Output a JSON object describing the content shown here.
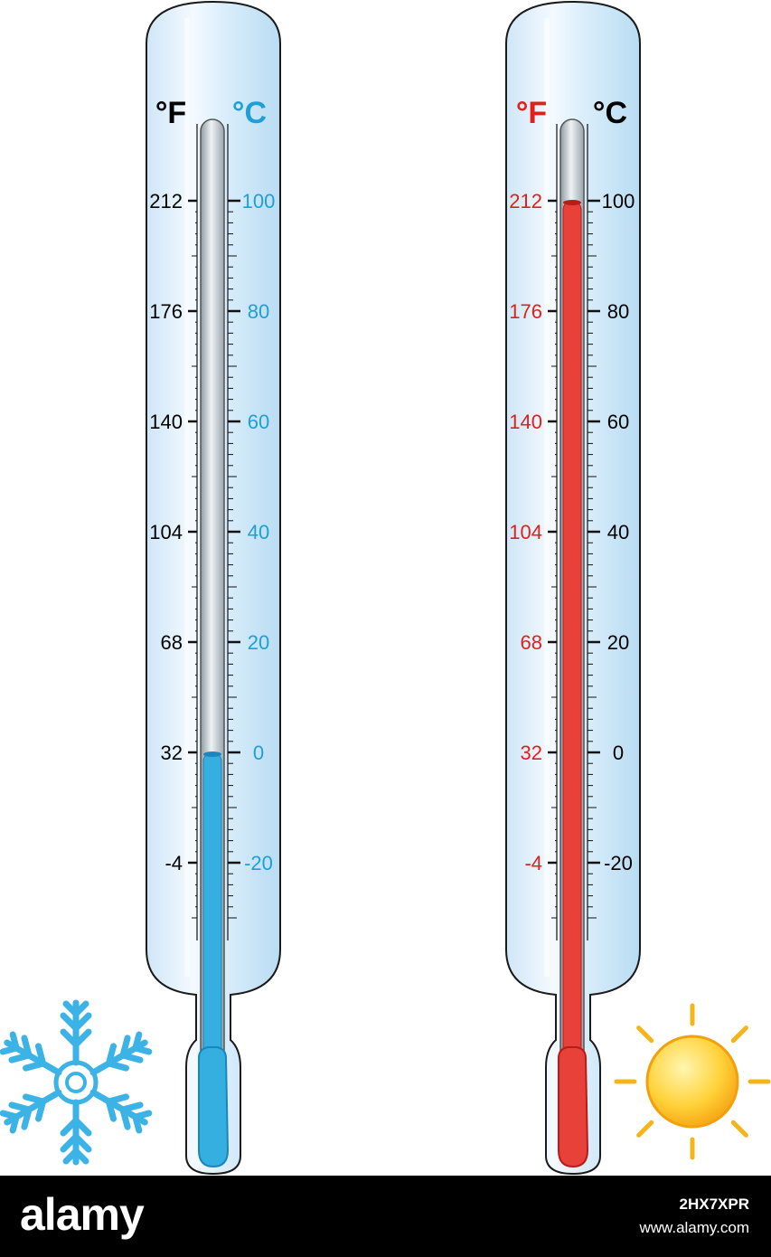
{
  "thermometers": [
    {
      "f_unit": "°F",
      "c_unit": "°C",
      "f_color": "#000000",
      "c_color": "#1e9fd6",
      "unit_f_color": "#000000",
      "unit_c_color": "#1e9fd6",
      "fill_color": "#35aee0",
      "fill_dark": "#1a86bd",
      "reading_celsius": 0,
      "f_labels": [
        "212",
        "176",
        "140",
        "104",
        "68",
        "32",
        "-4"
      ],
      "c_labels": [
        "100",
        "80",
        "60",
        "40",
        "20",
        "0",
        "-20"
      ],
      "icon": "snowflake-icon"
    },
    {
      "f_unit": "°F",
      "c_unit": "°C",
      "f_color": "#e0201b",
      "c_color": "#000000",
      "unit_f_color": "#e0201b",
      "unit_c_color": "#000000",
      "fill_color": "#e8413a",
      "fill_dark": "#b81c17",
      "reading_celsius": 100,
      "f_labels": [
        "212",
        "176",
        "140",
        "104",
        "68",
        "32",
        "-4"
      ],
      "c_labels": [
        "100",
        "80",
        "60",
        "40",
        "20",
        "0",
        "-20"
      ],
      "icon": "sun-icon"
    }
  ],
  "scale": {
    "c_min": -30,
    "c_max": 100
  },
  "footer": {
    "logo": "alamy",
    "image_id": "2HX7XPR",
    "url": "www.alamy.com"
  }
}
